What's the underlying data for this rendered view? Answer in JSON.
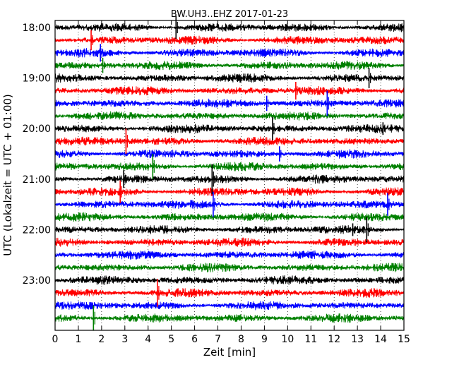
{
  "chart_data": {
    "type": "line",
    "title": "BW.UH3..EHZ 2017-01-23",
    "xlabel": "Zeit  [min]",
    "ylabel": "UTC (Lokalzeit = UTC + 01:00)",
    "xlim": [
      0,
      15
    ],
    "x_ticks": [
      "0",
      "1",
      "2",
      "3",
      "4",
      "5",
      "6",
      "7",
      "8",
      "9",
      "10",
      "11",
      "12",
      "13",
      "14",
      "15"
    ],
    "y_tick_labels": [
      "18:00",
      "19:00",
      "20:00",
      "21:00",
      "22:00",
      "23:00"
    ],
    "trace_start_times": [
      "18:00",
      "18:15",
      "18:30",
      "18:45",
      "19:00",
      "19:15",
      "19:30",
      "19:45",
      "20:00",
      "20:15",
      "20:30",
      "20:45",
      "21:00",
      "21:15",
      "21:30",
      "21:45",
      "22:00",
      "22:15",
      "22:30",
      "22:45",
      "23:00",
      "23:15",
      "23:30",
      "23:45"
    ],
    "trace_colors": [
      "#000000",
      "#ff0000",
      "#0000ff",
      "#008000"
    ],
    "grid": "vertical dotted at each minute",
    "legend": "none",
    "spikes": [
      {
        "trace": 0,
        "x": 5.2,
        "amp": 0.9
      },
      {
        "trace": 1,
        "x": 1.55,
        "amp": 0.8
      },
      {
        "trace": 2,
        "x": 1.95,
        "amp": 0.7
      },
      {
        "trace": 3,
        "x": 2.05,
        "amp": 0.6
      },
      {
        "trace": 4,
        "x": 13.5,
        "amp": 0.8
      },
      {
        "trace": 5,
        "x": 10.35,
        "amp": 0.7
      },
      {
        "trace": 6,
        "x": 9.1,
        "amp": 0.6
      },
      {
        "trace": 6,
        "x": 11.7,
        "amp": 1.0
      },
      {
        "trace": 8,
        "x": 9.35,
        "amp": 0.9
      },
      {
        "trace": 8,
        "x": 14.1,
        "amp": 0.5
      },
      {
        "trace": 9,
        "x": 3.05,
        "amp": 1.0
      },
      {
        "trace": 10,
        "x": 9.65,
        "amp": 0.6
      },
      {
        "trace": 11,
        "x": 4.2,
        "amp": 1.0
      },
      {
        "trace": 12,
        "x": 2.95,
        "amp": 0.7
      },
      {
        "trace": 12,
        "x": 6.75,
        "amp": 1.2
      },
      {
        "trace": 13,
        "x": 2.8,
        "amp": 0.9
      },
      {
        "trace": 14,
        "x": 6.8,
        "amp": 1.0
      },
      {
        "trace": 14,
        "x": 14.3,
        "amp": 0.9
      },
      {
        "trace": 16,
        "x": 13.4,
        "amp": 1.0
      },
      {
        "trace": 16,
        "x": 12.8,
        "amp": 0.5
      },
      {
        "trace": 21,
        "x": 4.4,
        "amp": 1.1
      },
      {
        "trace": 23,
        "x": 1.65,
        "amp": 1.0
      }
    ]
  }
}
